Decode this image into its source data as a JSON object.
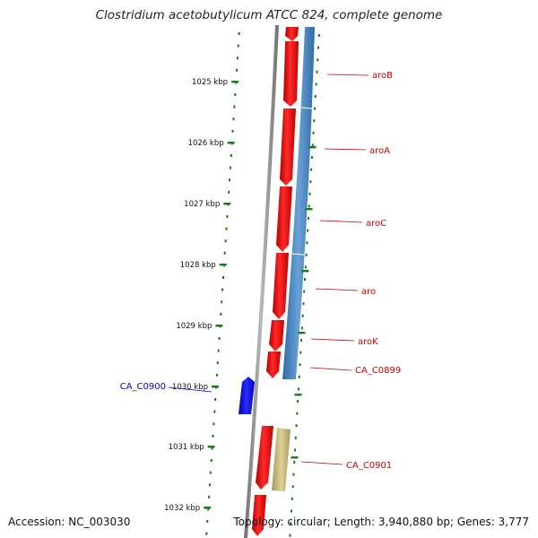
{
  "title": "Clostridium acetobutylicum ATCC 824, complete genome",
  "footer": {
    "accession": "Accession: NC_003030",
    "stats": "Topology: circular; Length: 3,940,880 bp; Genes: 3,777"
  },
  "colors": {
    "forward_gene": "#ff0000",
    "reverse_operon": "#4a86c0",
    "highlight_gene": "#0000ee",
    "khaki_gene": "#c9b97e",
    "tick": "#1a7a1a",
    "backbone": "#808080",
    "label_red": "#cc0000",
    "label_blue": "#0000cc"
  },
  "scale_ticks": [
    "1025 kbp",
    "1026 kbp",
    "1027 kbp",
    "1028 kbp",
    "1029 kbp",
    "1030 kbp",
    "1031 kbp",
    "1032 kbp"
  ],
  "gene_labels": [
    "aroB",
    "aroA",
    "aroC",
    "aro",
    "aroK",
    "CA_C0899",
    "CA_C0901",
    "CA_C0900"
  ]
}
